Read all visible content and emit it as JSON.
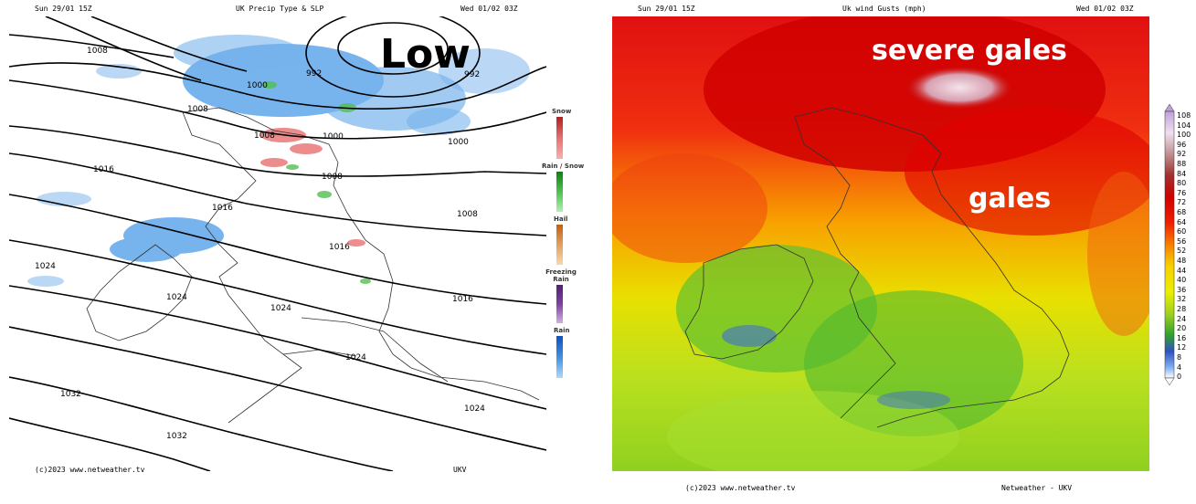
{
  "left": {
    "header_left": "Sun 29/01 15Z",
    "header_center": "UK Precip Type & SLP",
    "header_right": "Wed 01/02 03Z",
    "footer_left": "(c)2023 www.netweather.tv",
    "footer_right": "UKV",
    "annotation": "Low",
    "isobar_labels": [
      "1008",
      "992",
      "1000",
      "992",
      "1008",
      "1008",
      "1000",
      "1000",
      "1016",
      "1008",
      "1008",
      "1016",
      "1016",
      "1024",
      "1016",
      "1024",
      "1024",
      "1024",
      "1024",
      "1032",
      "1032"
    ],
    "legend": {
      "snow": "Snow",
      "rain_snow": "Rain / Snow",
      "hail": "Hail",
      "freezing_rain": "Freezing Rain",
      "rain": "Rain"
    }
  },
  "right": {
    "header_left": "Sun 29/01 15Z",
    "header_center": "Uk wind Gusts (mph)",
    "header_right": "Wed 01/02 03Z",
    "footer_left": "(c)2023 www.netweather.tv",
    "footer_right": "Netweather - UKV",
    "annotation_severe": "severe gales",
    "annotation_gales": "gales",
    "scale": [
      "108",
      "104",
      "100",
      "96",
      "92",
      "88",
      "84",
      "80",
      "76",
      "72",
      "68",
      "64",
      "60",
      "56",
      "52",
      "48",
      "44",
      "40",
      "36",
      "32",
      "28",
      "24",
      "20",
      "16",
      "12",
      "8",
      "4",
      "0"
    ]
  },
  "colors": {
    "snow": "#e87070",
    "rain_snow": "#50c050",
    "hail": "#e0a060",
    "freezing_rain": "#8040a0",
    "rain": "#4090e0",
    "gale_red": "#e00000",
    "severe_white": "#f0d8e0"
  }
}
